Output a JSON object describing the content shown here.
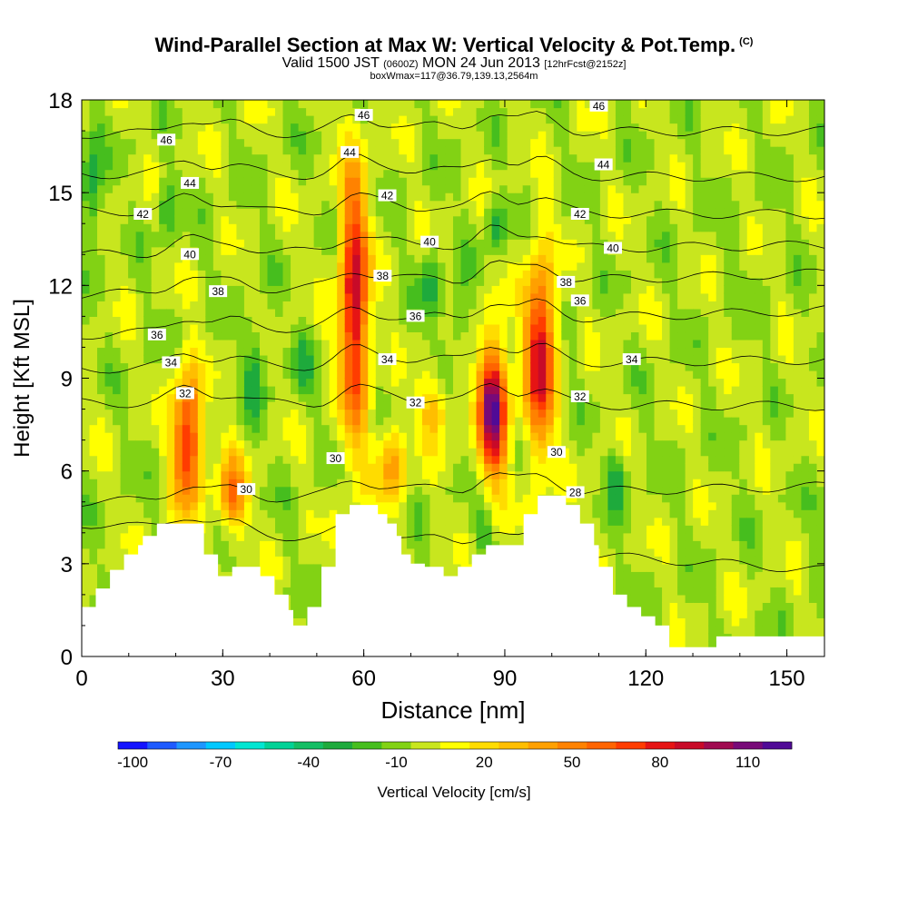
{
  "title": "Wind-Parallel Section at Max W: Vertical Velocity & Pot.Temp.",
  "copyright": "(C)",
  "subtitle_main": "Valid 1500 JST",
  "subtitle_z": "(0600Z)",
  "subtitle_date": "MON 24 Jun 2013",
  "subtitle_fcst": "[12hrFcst@2152z]",
  "subtitle2": "boxWmax=117@36.79,139.13,2564m",
  "chart_data": {
    "type": "heatmap",
    "xlabel": "Distance [nm]",
    "ylabel": "Height [Kft MSL]",
    "xlim": [
      0,
      158
    ],
    "ylim": [
      0,
      18
    ],
    "x_ticks": [
      0,
      30,
      60,
      90,
      120,
      150
    ],
    "y_ticks": [
      0,
      3,
      6,
      9,
      12,
      15,
      18
    ],
    "colorbar": {
      "label": "Vertical Velocity [cm/s]",
      "tick_labels": [
        -100,
        -70,
        -40,
        -10,
        20,
        50,
        80,
        110
      ],
      "levels": [
        -100,
        -90,
        -80,
        -70,
        -60,
        -50,
        -40,
        -30,
        -20,
        -10,
        0,
        10,
        20,
        30,
        40,
        50,
        60,
        70,
        80,
        90,
        100,
        110,
        120
      ],
      "colors": [
        "#1414ff",
        "#1e5aff",
        "#1e96ff",
        "#00c8ff",
        "#00e6d2",
        "#00d296",
        "#14be64",
        "#1eaa3c",
        "#46be1e",
        "#82d214",
        "#c8e61e",
        "#ffff00",
        "#ffdc00",
        "#ffbe00",
        "#ffa000",
        "#ff8200",
        "#ff6400",
        "#ff3c00",
        "#e61414",
        "#c80a28",
        "#a00a50",
        "#780a78",
        "#500a96"
      ]
    },
    "updrafts": [
      {
        "x_center": 22.5,
        "z_base": 4.0,
        "z_top": 10.0,
        "w_max": 85
      },
      {
        "x_center": 32,
        "z_base": 3.5,
        "z_top": 7.0,
        "w_max": 55
      },
      {
        "x_center": 58,
        "z_base": 5.5,
        "z_top": 17.5,
        "w_max": 95
      },
      {
        "x_center": 66,
        "z_base": 4.5,
        "z_top": 8.0,
        "w_max": 45
      },
      {
        "x_center": 87.5,
        "z_base": 5.0,
        "z_top": 11.0,
        "w_max": 117
      },
      {
        "x_center": 97.5,
        "z_base": 5.5,
        "z_top": 14.0,
        "w_max": 95
      },
      {
        "x_center": 75,
        "z_base": 6.5,
        "z_top": 9.5,
        "w_max": 35
      }
    ],
    "downdrafts": [
      {
        "x_center": 2,
        "z_base": 12.5,
        "z_top": 17.5,
        "w_min": -30
      },
      {
        "x_center": 18,
        "z_base": 13.0,
        "z_top": 16.0,
        "w_min": -20
      },
      {
        "x_center": 37,
        "z_base": 7.0,
        "z_top": 11.5,
        "w_min": -25
      },
      {
        "x_center": 47,
        "z_base": 8.0,
        "z_top": 11.0,
        "w_min": -20
      },
      {
        "x_center": 74,
        "z_base": 10.5,
        "z_top": 13.5,
        "w_min": -25
      },
      {
        "x_center": 80,
        "z_base": 9.5,
        "z_top": 12.5,
        "w_min": -25
      },
      {
        "x_center": 88,
        "z_base": 13.0,
        "z_top": 15.0,
        "w_min": -30
      },
      {
        "x_center": 114,
        "z_base": 4.5,
        "z_top": 7.0,
        "w_min": -30
      },
      {
        "x_center": 85,
        "z_base": 3.0,
        "z_top": 5.0,
        "w_min": -20
      }
    ],
    "terrain": [
      [
        0,
        1.6
      ],
      [
        3,
        1.6
      ],
      [
        3,
        2.2
      ],
      [
        6,
        2.2
      ],
      [
        6,
        2.8
      ],
      [
        9,
        2.8
      ],
      [
        9,
        3.3
      ],
      [
        12,
        3.3
      ],
      [
        12,
        3.6
      ],
      [
        13,
        3.6
      ],
      [
        13,
        3.9
      ],
      [
        16,
        3.9
      ],
      [
        16,
        4.3
      ],
      [
        26,
        4.3
      ],
      [
        26,
        3.3
      ],
      [
        29,
        3.3
      ],
      [
        29,
        2.6
      ],
      [
        32,
        2.6
      ],
      [
        32,
        2.9
      ],
      [
        38,
        2.9
      ],
      [
        38,
        2.6
      ],
      [
        41,
        2.6
      ],
      [
        41,
        2.0
      ],
      [
        44,
        2.0
      ],
      [
        44,
        1.5
      ],
      [
        45,
        1.5
      ],
      [
        45,
        1.0
      ],
      [
        48,
        1.0
      ],
      [
        48,
        1.6
      ],
      [
        51,
        1.6
      ],
      [
        51,
        2.9
      ],
      [
        54,
        2.9
      ],
      [
        54,
        4.6
      ],
      [
        57,
        4.6
      ],
      [
        57,
        4.9
      ],
      [
        63,
        4.9
      ],
      [
        63,
        4.6
      ],
      [
        65,
        4.6
      ],
      [
        65,
        4.3
      ],
      [
        67,
        4.3
      ],
      [
        67,
        3.9
      ],
      [
        68,
        3.9
      ],
      [
        68,
        3.3
      ],
      [
        70,
        3.3
      ],
      [
        70,
        3.0
      ],
      [
        73,
        3.0
      ],
      [
        73,
        2.9
      ],
      [
        77,
        2.9
      ],
      [
        77,
        2.6
      ],
      [
        80,
        2.6
      ],
      [
        80,
        2.9
      ],
      [
        83,
        2.9
      ],
      [
        83,
        3.3
      ],
      [
        86,
        3.3
      ],
      [
        86,
        3.6
      ],
      [
        94,
        3.6
      ],
      [
        94,
        4.6
      ],
      [
        97,
        4.6
      ],
      [
        97,
        5.2
      ],
      [
        103,
        5.2
      ],
      [
        103,
        4.9
      ],
      [
        106,
        4.9
      ],
      [
        106,
        4.3
      ],
      [
        109,
        4.3
      ],
      [
        109,
        3.6
      ],
      [
        110,
        3.6
      ],
      [
        110,
        2.9
      ],
      [
        113,
        2.9
      ],
      [
        113,
        2.0
      ],
      [
        116,
        2.0
      ],
      [
        116,
        1.6
      ],
      [
        119,
        1.6
      ],
      [
        119,
        1.3
      ],
      [
        122,
        1.3
      ],
      [
        122,
        1.0
      ],
      [
        125,
        1.0
      ],
      [
        125,
        0.3
      ],
      [
        135,
        0.3
      ],
      [
        135,
        0.65
      ],
      [
        158,
        0.65
      ]
    ],
    "theta_contours": [
      {
        "label": "28",
        "z_left": 4.3,
        "z_right": 2.8
      },
      {
        "label": "30",
        "z_left": 5.0,
        "z_right": 5.5
      },
      {
        "label": "32",
        "z_left": 8.2,
        "z_right": 8.1
      },
      {
        "label": "34",
        "z_left": 9.3,
        "z_right": 9.6
      },
      {
        "label": "36",
        "z_left": 10.4,
        "z_right": 11.2
      },
      {
        "label": "38",
        "z_left": 11.7,
        "z_right": 12.4
      },
      {
        "label": "40",
        "z_left": 13.0,
        "z_right": 13.3
      },
      {
        "label": "42",
        "z_left": 14.4,
        "z_right": 14.3
      },
      {
        "label": "44",
        "z_left": 15.6,
        "z_right": 15.5
      },
      {
        "label": "46",
        "z_left": 16.9,
        "z_right": 17.0
      }
    ],
    "contour_labels": [
      {
        "text": "46",
        "x": 18,
        "z": 16.7
      },
      {
        "text": "46",
        "x": 60,
        "z": 17.5
      },
      {
        "text": "46",
        "x": 110,
        "z": 17.8
      },
      {
        "text": "44",
        "x": 23,
        "z": 15.3
      },
      {
        "text": "44",
        "x": 57,
        "z": 16.3
      },
      {
        "text": "44",
        "x": 111,
        "z": 15.9
      },
      {
        "text": "42",
        "x": 13,
        "z": 14.3
      },
      {
        "text": "42",
        "x": 65,
        "z": 14.9
      },
      {
        "text": "42",
        "x": 106,
        "z": 14.3
      },
      {
        "text": "40",
        "x": 23,
        "z": 13.0
      },
      {
        "text": "40",
        "x": 74,
        "z": 13.4
      },
      {
        "text": "40",
        "x": 113,
        "z": 13.2
      },
      {
        "text": "38",
        "x": 29,
        "z": 11.8
      },
      {
        "text": "38",
        "x": 64,
        "z": 12.3
      },
      {
        "text": "38",
        "x": 103,
        "z": 12.1
      },
      {
        "text": "36",
        "x": 16,
        "z": 10.4
      },
      {
        "text": "36",
        "x": 71,
        "z": 11.0
      },
      {
        "text": "36",
        "x": 106,
        "z": 11.5
      },
      {
        "text": "34",
        "x": 19,
        "z": 9.5
      },
      {
        "text": "34",
        "x": 65,
        "z": 9.6
      },
      {
        "text": "34",
        "x": 117,
        "z": 9.6
      },
      {
        "text": "32",
        "x": 22,
        "z": 8.5
      },
      {
        "text": "32",
        "x": 71,
        "z": 8.2
      },
      {
        "text": "32",
        "x": 106,
        "z": 8.4
      },
      {
        "text": "30",
        "x": 35,
        "z": 5.4
      },
      {
        "text": "30",
        "x": 54,
        "z": 6.4
      },
      {
        "text": "30",
        "x": 101,
        "z": 6.6
      },
      {
        "text": "28",
        "x": 105,
        "z": 5.3
      }
    ]
  }
}
